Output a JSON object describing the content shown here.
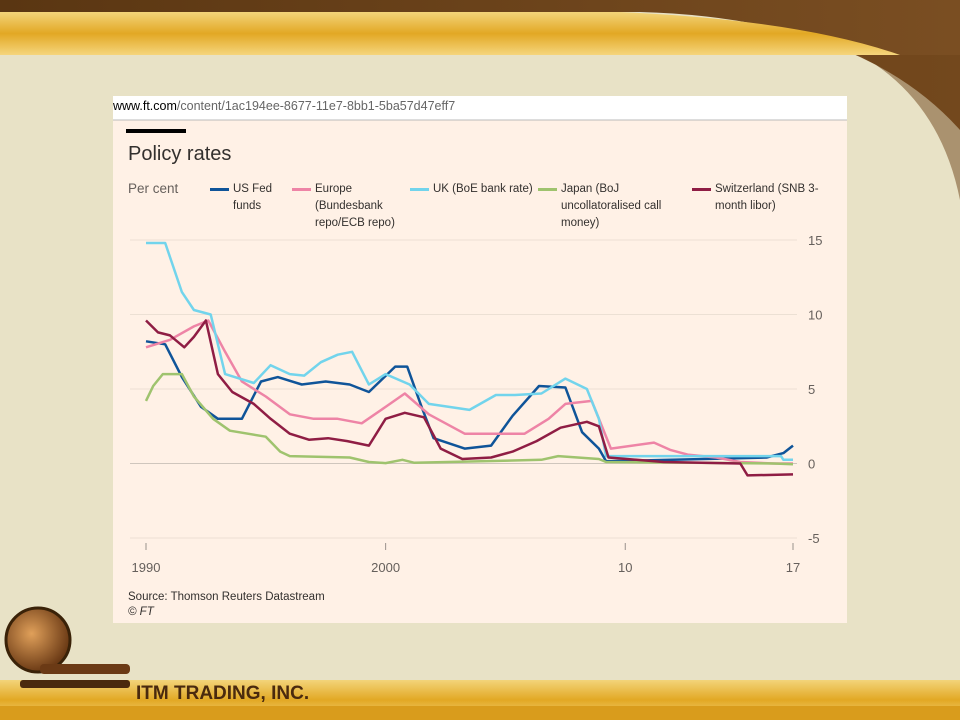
{
  "url": {
    "domain": "www.ft.com",
    "path": "/content/1ac194ee-8677-11e7-8bb1-5ba57d47eff7"
  },
  "chart_data": {
    "type": "line",
    "title": "Policy rates",
    "ylabel": "Per cent",
    "xlim": [
      1990,
      2017
    ],
    "xticks": [
      1990,
      2000,
      {
        "value": 2010,
        "label": "10"
      },
      {
        "value": 2017,
        "label": "17"
      }
    ],
    "ylim": [
      -5,
      15
    ],
    "yticks": [
      -5,
      0,
      5,
      10,
      15
    ],
    "grid": true,
    "series": [
      {
        "name": "US Fed funds",
        "color": "#0f5499",
        "x": [
          1990,
          1990.8,
          1991.5,
          1992.3,
          1993,
          1994,
          1994.8,
          1995.5,
          1996.5,
          1997.5,
          1998.5,
          1999.3,
          2000.4,
          2000.9,
          2001.5,
          2002,
          2003.3,
          2004.4,
          2005.3,
          2006.4,
          2007.5,
          2008.2,
          2008.9,
          2009.2,
          2015.9,
          2016.6,
          2017
        ],
        "values": [
          8.2,
          8,
          5.8,
          3.8,
          3,
          3,
          5.5,
          5.8,
          5.3,
          5.5,
          5.3,
          4.8,
          6.5,
          6.5,
          3.8,
          1.7,
          1,
          1.2,
          3.2,
          5.2,
          5.1,
          2.1,
          1,
          0.15,
          0.4,
          0.7,
          1.2
        ]
      },
      {
        "name": "Europe (Bundesbank repo/ECB repo)",
        "color": "#ee84a6",
        "x": [
          1990,
          1991,
          1992,
          1992.6,
          1993.3,
          1994,
          1995,
          1996,
          1997,
          1998,
          1999,
          2000,
          2000.8,
          2001.8,
          2003.3,
          2005.8,
          2006.8,
          2007.5,
          2008.6,
          2009.4,
          2011.2,
          2011.9,
          2012.6,
          2013.8,
          2014.8,
          2016.2,
          2017
        ],
        "values": [
          7.8,
          8.3,
          9.2,
          9.6,
          7.5,
          5.5,
          4.5,
          3.3,
          3,
          3,
          2.7,
          3.8,
          4.7,
          3.3,
          2,
          2,
          3,
          4,
          4.2,
          1,
          1.4,
          0.9,
          0.6,
          0.4,
          0.1,
          0,
          0
        ]
      },
      {
        "name": "UK (BoE bank rate)",
        "color": "#72d4ec",
        "x": [
          1990,
          1990.8,
          1991.5,
          1992,
          1992.7,
          1993.3,
          1994.5,
          1995.2,
          1996,
          1996.6,
          1997.3,
          1998,
          1998.6,
          1999.3,
          2000,
          2001,
          2001.8,
          2003.5,
          2004.6,
          2005.4,
          2006.5,
          2007.5,
          2008.4,
          2008.9,
          2009.2,
          2016.5,
          2016.6,
          2017
        ],
        "values": [
          14.8,
          14.8,
          11.5,
          10.3,
          10,
          6,
          5.4,
          6.6,
          6,
          5.9,
          6.8,
          7.3,
          7.5,
          5.3,
          6,
          5.3,
          4,
          3.6,
          4.6,
          4.6,
          4.7,
          5.7,
          5,
          3,
          0.5,
          0.5,
          0.25,
          0.25
        ]
      },
      {
        "name": "Japan (BoJ uncollatoralised call money)",
        "color": "#9fc36e",
        "x": [
          1990,
          1990.3,
          1990.7,
          1991.5,
          1992,
          1992.8,
          1993.5,
          1995,
          1995.6,
          1996,
          1998.5,
          1999.3,
          2000,
          2000.7,
          2001.2,
          2006.5,
          2007.2,
          2008.9,
          2009.2,
          2016.2,
          2017
        ],
        "values": [
          4.2,
          5.2,
          6,
          6,
          4.5,
          3,
          2.2,
          1.8,
          0.8,
          0.5,
          0.4,
          0.1,
          0.03,
          0.25,
          0.05,
          0.25,
          0.5,
          0.3,
          0.1,
          0,
          -0.05
        ]
      },
      {
        "name": "Switzerland (SNB 3-month libor)",
        "color": "#8f1d44",
        "x": [
          1990,
          1990.5,
          1991,
          1991.6,
          1992,
          1992.5,
          1993,
          1993.6,
          1994.5,
          1995.2,
          1996,
          1996.8,
          1997.6,
          1998.4,
          1999.3,
          2000,
          2000.8,
          2001.6,
          2002.3,
          2003.2,
          2004.4,
          2005.3,
          2006.3,
          2007.3,
          2008.4,
          2008.9,
          2009.3,
          2011.6,
          2014.8,
          2015.1,
          2017
        ],
        "values": [
          9.6,
          8.8,
          8.6,
          7.8,
          8.5,
          9.6,
          6,
          4.8,
          4,
          3,
          2,
          1.6,
          1.7,
          1.5,
          1.2,
          3,
          3.4,
          3.1,
          1,
          0.3,
          0.4,
          0.8,
          1.5,
          2.4,
          2.8,
          2.5,
          0.4,
          0.1,
          0,
          -0.8,
          -0.73
        ]
      }
    ]
  },
  "source": "Source: Thomson Reuters Datastream",
  "credit": "© FT",
  "company": "ITM TRADING, INC."
}
